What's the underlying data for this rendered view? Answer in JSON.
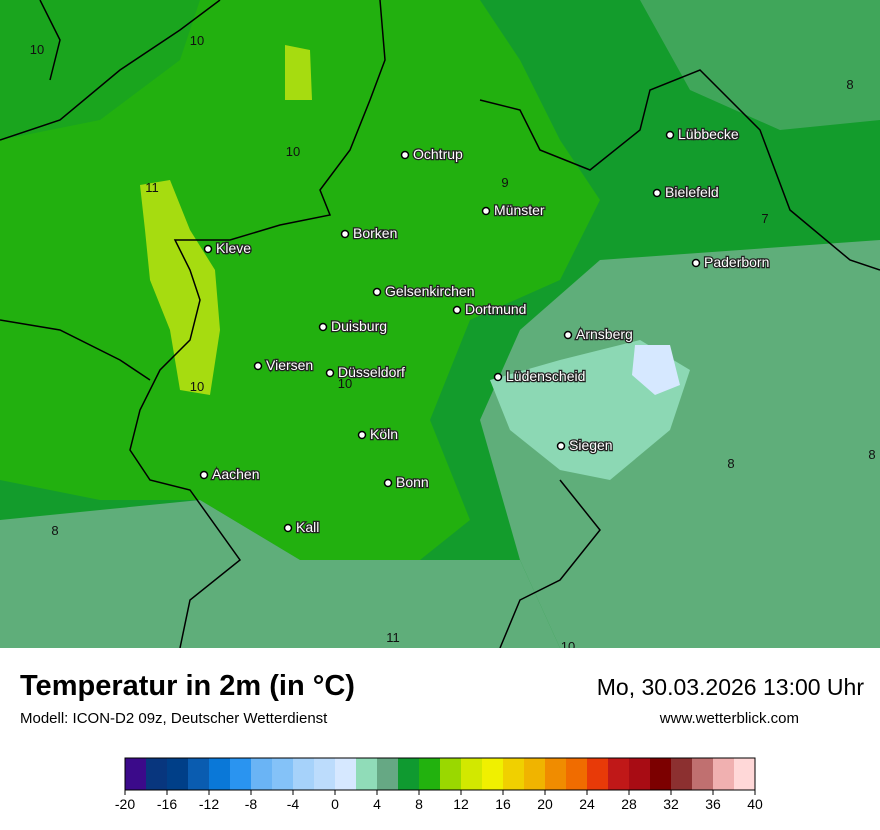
{
  "header": {
    "title": "Temperatur in 2m (in °C)",
    "model": "Modell: ICON-D2 09z, Deutscher Wetterdienst",
    "datetime": "Mo, 30.03.2026 13:00 Uhr",
    "website": "www.wetterblick.com"
  },
  "map": {
    "cities": [
      "Lübbecke",
      "Ochtrup",
      "Bielefeld",
      "Münster",
      "Borken",
      "Kleve",
      "Paderborn",
      "Gelsenkirchen",
      "Dortmund",
      "Duisburg",
      "Arnsberg",
      "Viersen",
      "Düsseldorf",
      "Lüdenscheid",
      "Köln",
      "Siegen",
      "Aachen",
      "Bonn",
      "Kall"
    ],
    "contour_labels": [
      10,
      10,
      10,
      11,
      9,
      8,
      7,
      10,
      10,
      8,
      8,
      8,
      11,
      10
    ]
  },
  "legend": {
    "ticks": [
      -20,
      -16,
      -12,
      -8,
      -4,
      0,
      4,
      8,
      12,
      16,
      20,
      24,
      28,
      32,
      36,
      40
    ],
    "colors": [
      "#3b0a8a",
      "#08367e",
      "#003f88",
      "#0a5cb0",
      "#0a78d8",
      "#2a94f0",
      "#6ab4f5",
      "#84c2f8",
      "#a6d2fa",
      "#bcdcfc",
      "#d6e8ff",
      "#90dcb8",
      "#66a884",
      "#0f9a30",
      "#22b20e",
      "#9ad800",
      "#d2e800",
      "#f0f000",
      "#f0d000",
      "#f0b400",
      "#f08c00",
      "#f06c00",
      "#e83a08",
      "#c01818",
      "#a80c14",
      "#7c0000",
      "#8c3030",
      "#c07070",
      "#f0b0b0",
      "#ffd8d8"
    ]
  }
}
